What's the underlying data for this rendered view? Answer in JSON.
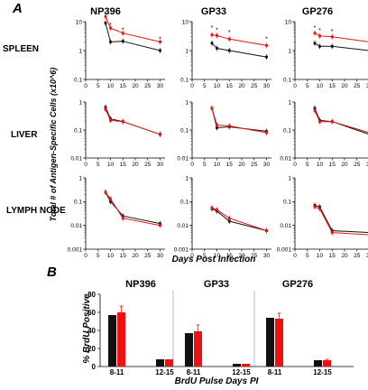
{
  "panel_a": {
    "letter": "A",
    "columns": [
      "NP396",
      "GP33",
      "GP276"
    ],
    "rows": [
      "SPLEEN",
      "LIVER",
      "LYMPH NODE"
    ],
    "ylabel": "Total # of Antigen-Specific Cells  (x10^6)",
    "xlabel": "Days Post Infection",
    "xticks": [
      0,
      5,
      10,
      15,
      20,
      25,
      30
    ]
  },
  "panel_b": {
    "letter": "B",
    "ylabel": "% BrdU  Positive",
    "xlabel": "BrdU Pulse Days PI",
    "yticks": [
      0,
      20,
      40,
      60,
      80
    ],
    "groups": [
      "NP396",
      "GP33",
      "GP276"
    ],
    "categories": [
      "8-11",
      "12-15"
    ]
  },
  "colors": {
    "series_black": "#111111",
    "series_red": "#ee1111"
  },
  "chart_data": [
    {
      "type": "line",
      "id": "spleen-np396",
      "row": 0,
      "col": 0,
      "log": true,
      "ylim": [
        0.1,
        10
      ],
      "yticks": [
        0.1,
        1,
        10
      ],
      "xlim": [
        0,
        32
      ],
      "x": [
        8,
        10,
        15,
        30
      ],
      "series": [
        {
          "color": "black",
          "values": [
            9,
            2,
            2.1,
            1
          ]
        },
        {
          "color": "red",
          "values": [
            15,
            6,
            4,
            2
          ]
        }
      ],
      "stars": [
        {
          "x": 8,
          "y": 20
        },
        {
          "x": 10,
          "y": 8
        },
        {
          "x": 15,
          "y": 5.5
        },
        {
          "x": 30,
          "y": 2.6
        }
      ]
    },
    {
      "type": "line",
      "id": "spleen-gp33",
      "row": 0,
      "col": 1,
      "log": true,
      "ylim": [
        0.1,
        10
      ],
      "yticks": [
        0.1,
        1,
        10
      ],
      "xlim": [
        0,
        32
      ],
      "x": [
        8,
        10,
        15,
        30
      ],
      "series": [
        {
          "color": "black",
          "values": [
            1.8,
            1.2,
            1,
            0.6
          ]
        },
        {
          "color": "red",
          "values": [
            3.5,
            3.3,
            2.5,
            1.5
          ]
        }
      ],
      "stars": [
        {
          "x": 8,
          "y": 6.5
        },
        {
          "x": 10,
          "y": 5.5
        },
        {
          "x": 15,
          "y": 4.5
        },
        {
          "x": 30,
          "y": 2.6
        }
      ]
    },
    {
      "type": "line",
      "id": "spleen-gp276",
      "row": 0,
      "col": 2,
      "log": true,
      "ylim": [
        0.1,
        10
      ],
      "yticks": [
        0.1,
        1,
        10
      ],
      "xlim": [
        0,
        32
      ],
      "x": [
        8,
        10,
        15,
        30
      ],
      "series": [
        {
          "color": "black",
          "values": [
            1.8,
            1.4,
            1.4,
            1
          ]
        },
        {
          "color": "red",
          "values": [
            4,
            3.2,
            3,
            2
          ]
        }
      ],
      "stars": [
        {
          "x": 8,
          "y": 6.5
        },
        {
          "x": 10,
          "y": 5.2
        },
        {
          "x": 15,
          "y": 4.8
        },
        {
          "x": 30,
          "y": 3
        }
      ]
    },
    {
      "type": "line",
      "id": "liver-np396",
      "row": 1,
      "col": 0,
      "log": true,
      "ylim": [
        0.01,
        1
      ],
      "yticks": [
        0.01,
        0.1,
        1
      ],
      "xlim": [
        0,
        32
      ],
      "x": [
        8,
        10,
        15,
        30
      ],
      "series": [
        {
          "color": "black",
          "values": [
            0.65,
            0.25,
            0.2,
            0.07
          ]
        },
        {
          "color": "red",
          "values": [
            0.55,
            0.22,
            0.2,
            0.07
          ]
        }
      ],
      "stars": []
    },
    {
      "type": "line",
      "id": "liver-gp33",
      "row": 1,
      "col": 1,
      "log": true,
      "ylim": [
        0.01,
        1
      ],
      "yticks": [
        0.01,
        0.1,
        1
      ],
      "xlim": [
        0,
        32
      ],
      "x": [
        8,
        10,
        15,
        30
      ],
      "series": [
        {
          "color": "black",
          "values": [
            0.6,
            0.12,
            0.13,
            0.09
          ]
        },
        {
          "color": "red",
          "values": [
            0.6,
            0.15,
            0.14,
            0.08
          ]
        }
      ],
      "stars": []
    },
    {
      "type": "line",
      "id": "liver-gp276",
      "row": 1,
      "col": 2,
      "log": true,
      "ylim": [
        0.01,
        1
      ],
      "yticks": [
        0.01,
        0.1,
        1
      ],
      "xlim": [
        0,
        32
      ],
      "x": [
        8,
        10,
        15,
        30
      ],
      "series": [
        {
          "color": "black",
          "values": [
            0.6,
            0.22,
            0.2,
            0.07
          ]
        },
        {
          "color": "red",
          "values": [
            0.5,
            0.2,
            0.2,
            0.08
          ]
        }
      ],
      "stars": []
    },
    {
      "type": "line",
      "id": "lymph-np396",
      "row": 2,
      "col": 0,
      "log": true,
      "ylim": [
        0.001,
        1
      ],
      "yticks": [
        0.001,
        0.01,
        0.1,
        1
      ],
      "xlim": [
        0,
        32
      ],
      "x": [
        8,
        10,
        15,
        30
      ],
      "series": [
        {
          "color": "black",
          "values": [
            0.25,
            0.1,
            0.025,
            0.012
          ]
        },
        {
          "color": "red",
          "values": [
            0.25,
            0.13,
            0.02,
            0.01
          ]
        }
      ],
      "stars": []
    },
    {
      "type": "line",
      "id": "lymph-gp33",
      "row": 2,
      "col": 1,
      "log": true,
      "ylim": [
        0.001,
        1
      ],
      "yticks": [
        0.001,
        0.01,
        0.1,
        1
      ],
      "xlim": [
        0,
        32
      ],
      "x": [
        8,
        10,
        15,
        30
      ],
      "series": [
        {
          "color": "black",
          "values": [
            0.05,
            0.04,
            0.015,
            0.006
          ]
        },
        {
          "color": "red",
          "values": [
            0.055,
            0.045,
            0.02,
            0.006
          ]
        }
      ],
      "stars": []
    },
    {
      "type": "line",
      "id": "lymph-gp276",
      "row": 2,
      "col": 2,
      "log": true,
      "ylim": [
        0.001,
        1
      ],
      "yticks": [
        0.001,
        0.01,
        0.1,
        1
      ],
      "xlim": [
        0,
        32
      ],
      "x": [
        8,
        10,
        15,
        30
      ],
      "series": [
        {
          "color": "black",
          "values": [
            0.07,
            0.06,
            0.006,
            0.005
          ]
        },
        {
          "color": "red",
          "values": [
            0.06,
            0.05,
            0.005,
            0.004
          ]
        }
      ],
      "stars": []
    },
    {
      "type": "bar",
      "id": "brdu",
      "ylim": [
        0,
        80
      ],
      "yticks": [
        0,
        20,
        40,
        60,
        80
      ],
      "groups": [
        {
          "name": "NP396",
          "categories": [
            "8-11",
            "12-15"
          ],
          "black": [
            57,
            8
          ],
          "red": [
            60,
            8
          ],
          "red_err": [
            7,
            0
          ]
        },
        {
          "name": "GP33",
          "categories": [
            "8-11",
            "12-15"
          ],
          "black": [
            37,
            3
          ],
          "red": [
            39,
            3
          ],
          "red_err": [
            7,
            0
          ]
        },
        {
          "name": "GP276",
          "categories": [
            "8-11",
            "12-15"
          ],
          "black": [
            54,
            7
          ],
          "red": [
            53,
            7
          ],
          "red_err": [
            6,
            1
          ]
        }
      ]
    }
  ]
}
